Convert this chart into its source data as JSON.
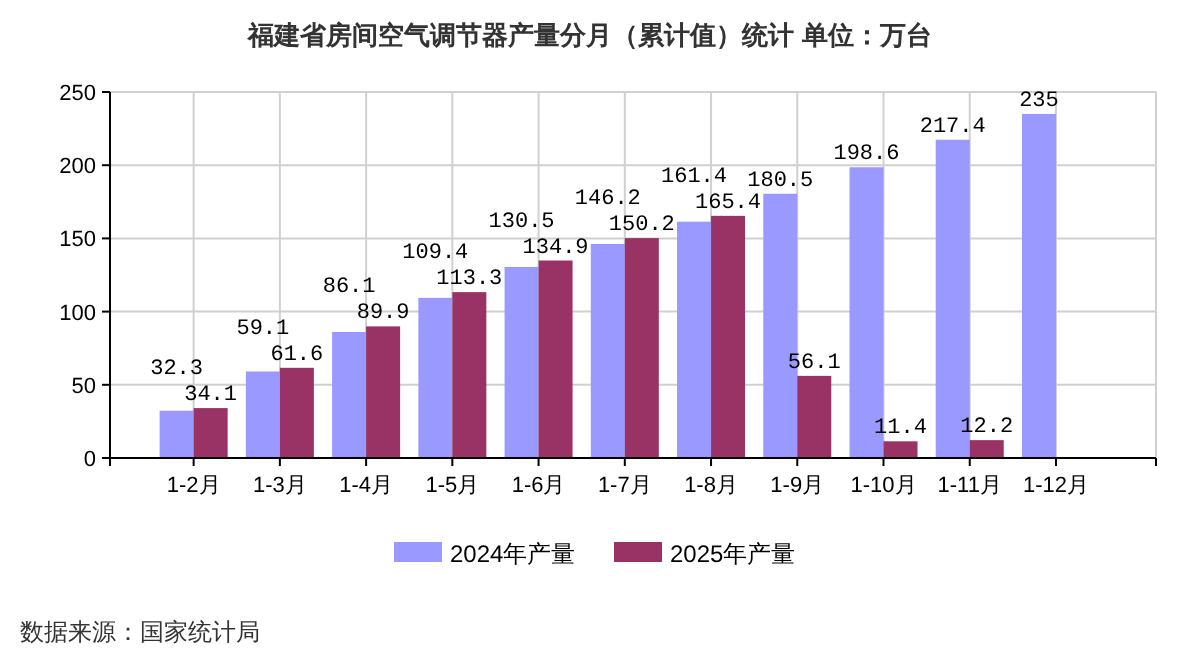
{
  "chart_data": {
    "type": "bar",
    "title": "福建省房间空气调节器产量分月（累计值）统计 单位：万台",
    "categories": [
      "1-2月",
      "1-3月",
      "1-4月",
      "1-5月",
      "1-6月",
      "1-7月",
      "1-8月",
      "1-9月",
      "1-10月",
      "1-11月",
      "1-12月"
    ],
    "series": [
      {
        "name": "2024年产量",
        "color": "#9999ff",
        "values": [
          32.3,
          59.1,
          86.1,
          109.4,
          130.5,
          146.2,
          161.4,
          180.5,
          198.6,
          217.4,
          235
        ]
      },
      {
        "name": "2025年产量",
        "color": "#993366",
        "values": [
          34.1,
          61.6,
          89.9,
          113.3,
          134.9,
          150.2,
          165.4,
          56.1,
          11.4,
          12.2,
          null
        ]
      }
    ],
    "ylim": [
      0,
      250
    ],
    "yticks": [
      0,
      50,
      100,
      150,
      200,
      250
    ],
    "grid": true,
    "legend": "bottom",
    "data_labels": true,
    "annotations": [
      "数据来源：国家统计局"
    ]
  }
}
